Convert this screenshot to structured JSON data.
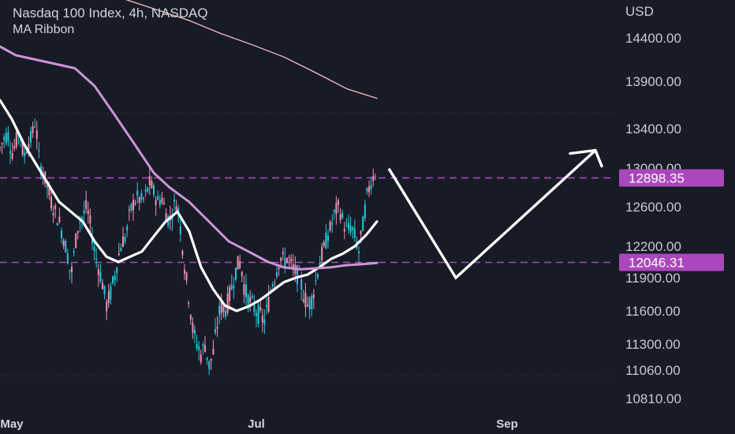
{
  "header": {
    "title": "Nasdaq 100 Index, 4h, NASDAQ",
    "indicator": "MA Ribbon"
  },
  "colors": {
    "background": "#171b26",
    "up": "#f48fb1",
    "down": "#26c6da",
    "ma_fast": "#ffffff",
    "ma_mid": "#ce93d8",
    "ma_slow": "#f8bbd0",
    "level": "#ab47bc",
    "projection": "#ffffff"
  },
  "chart_data": {
    "type": "candlestick",
    "currency": "USD",
    "x_ticks": [
      {
        "label": "May",
        "t": 15
      },
      {
        "label": "Jul",
        "t": 325
      },
      {
        "label": "Sep",
        "t": 643
      }
    ],
    "xlim": [
      0,
      780
    ],
    "y_ticks": [
      14400,
      13900,
      13400,
      13000,
      12600,
      12200,
      11900,
      11600,
      11300,
      11060,
      10810
    ],
    "y_ticks_labels": [
      "14400.00",
      "13900.00",
      "13400.00",
      "13000.00",
      "12600.00",
      "12200.00",
      "11900.00",
      "11600.00",
      "11300.00",
      "11060.00",
      "10810.00"
    ],
    "levels": [
      {
        "value": 12898.35,
        "label": "12898.35"
      },
      {
        "value": 12046.31,
        "label": "12046.31"
      }
    ],
    "dotted_lines": [
      13565,
      11010
    ],
    "price_series": [
      [
        0,
        13200
      ],
      [
        5,
        13300
      ],
      [
        10,
        13350
      ],
      [
        15,
        13150
      ],
      [
        20,
        13250
      ],
      [
        25,
        13400
      ],
      [
        30,
        13100
      ],
      [
        35,
        13250
      ],
      [
        40,
        13300
      ],
      [
        45,
        13500
      ],
      [
        50,
        13050
      ],
      [
        55,
        12950
      ],
      [
        60,
        12800
      ],
      [
        65,
        12650
      ],
      [
        70,
        12550
      ],
      [
        75,
        12450
      ],
      [
        80,
        12300
      ],
      [
        85,
        12150
      ],
      [
        90,
        11900
      ],
      [
        95,
        12200
      ],
      [
        100,
        12450
      ],
      [
        105,
        12500
      ],
      [
        110,
        12600
      ],
      [
        115,
        12400
      ],
      [
        120,
        12150
      ],
      [
        125,
        12000
      ],
      [
        130,
        11850
      ],
      [
        135,
        11650
      ],
      [
        140,
        11750
      ],
      [
        145,
        11900
      ],
      [
        150,
        12100
      ],
      [
        155,
        12250
      ],
      [
        160,
        12300
      ],
      [
        165,
        12550
      ],
      [
        170,
        12650
      ],
      [
        175,
        12700
      ],
      [
        180,
        12650
      ],
      [
        185,
        12720
      ],
      [
        190,
        12850
      ],
      [
        195,
        12750
      ],
      [
        200,
        12650
      ],
      [
        205,
        12700
      ],
      [
        210,
        12550
      ],
      [
        215,
        12450
      ],
      [
        220,
        12600
      ],
      [
        225,
        12650
      ],
      [
        230,
        12300
      ],
      [
        235,
        11950
      ],
      [
        240,
        11700
      ],
      [
        245,
        11400
      ],
      [
        250,
        11300
      ],
      [
        255,
        11200
      ],
      [
        260,
        11300
      ],
      [
        265,
        11100
      ],
      [
        270,
        11200
      ],
      [
        275,
        11450
      ],
      [
        280,
        11650
      ],
      [
        285,
        11600
      ],
      [
        290,
        11700
      ],
      [
        295,
        11850
      ],
      [
        300,
        12000
      ],
      [
        305,
        12050
      ],
      [
        310,
        11800
      ],
      [
        315,
        11700
      ],
      [
        320,
        11650
      ],
      [
        325,
        11600
      ],
      [
        330,
        11550
      ],
      [
        335,
        11500
      ],
      [
        340,
        11650
      ],
      [
        345,
        11850
      ],
      [
        350,
        11950
      ],
      [
        355,
        12100
      ],
      [
        360,
        12050
      ],
      [
        365,
        12100
      ],
      [
        370,
        12000
      ],
      [
        375,
        11950
      ],
      [
        380,
        11900
      ],
      [
        385,
        11750
      ],
      [
        390,
        11650
      ],
      [
        395,
        11700
      ],
      [
        400,
        11850
      ],
      [
        405,
        12050
      ],
      [
        410,
        12150
      ],
      [
        415,
        12300
      ],
      [
        420,
        12400
      ],
      [
        425,
        12550
      ],
      [
        430,
        12600
      ],
      [
        435,
        12450
      ],
      [
        440,
        12350
      ],
      [
        445,
        12400
      ],
      [
        450,
        12300
      ],
      [
        455,
        12150
      ],
      [
        460,
        12400
      ],
      [
        465,
        12700
      ],
      [
        470,
        12850
      ],
      [
        475,
        12950
      ]
    ],
    "series": [
      {
        "name": "",
        "role": "ma_fast",
        "points": [
          [
            0,
            13700
          ],
          [
            15,
            13500
          ],
          [
            30,
            13250
          ],
          [
            45,
            13050
          ],
          [
            60,
            12850
          ],
          [
            75,
            12650
          ],
          [
            90,
            12550
          ],
          [
            105,
            12450
          ],
          [
            120,
            12250
          ],
          [
            135,
            12100
          ],
          [
            150,
            12050
          ],
          [
            165,
            12100
          ],
          [
            180,
            12150
          ],
          [
            195,
            12300
          ],
          [
            210,
            12450
          ],
          [
            225,
            12550
          ],
          [
            240,
            12350
          ],
          [
            255,
            12000
          ],
          [
            270,
            11800
          ],
          [
            285,
            11650
          ],
          [
            300,
            11600
          ],
          [
            315,
            11640
          ],
          [
            330,
            11700
          ],
          [
            345,
            11780
          ],
          [
            360,
            11860
          ],
          [
            375,
            11900
          ],
          [
            390,
            11930
          ],
          [
            405,
            12000
          ],
          [
            420,
            12080
          ],
          [
            435,
            12130
          ],
          [
            450,
            12200
          ],
          [
            465,
            12320
          ],
          [
            478,
            12450
          ]
        ]
      },
      {
        "name": "",
        "role": "ma_mid",
        "points": [
          [
            0,
            14300
          ],
          [
            20,
            14200
          ],
          [
            45,
            14150
          ],
          [
            70,
            14100
          ],
          [
            95,
            14050
          ],
          [
            120,
            13850
          ],
          [
            145,
            13550
          ],
          [
            170,
            13250
          ],
          [
            195,
            12950
          ],
          [
            215,
            12800
          ],
          [
            240,
            12650
          ],
          [
            265,
            12450
          ],
          [
            290,
            12250
          ],
          [
            315,
            12150
          ],
          [
            340,
            12050
          ],
          [
            360,
            12000
          ],
          [
            380,
            11980
          ],
          [
            400,
            11990
          ],
          [
            420,
            12000
          ],
          [
            440,
            12020
          ],
          [
            460,
            12030
          ],
          [
            478,
            12040
          ]
        ]
      },
      {
        "name": "",
        "role": "ma_slow",
        "points": [
          [
            120,
            14950
          ],
          [
            160,
            14840
          ],
          [
            200,
            14720
          ],
          [
            240,
            14600
          ],
          [
            280,
            14450
          ],
          [
            320,
            14320
          ],
          [
            360,
            14180
          ],
          [
            400,
            14000
          ],
          [
            440,
            13820
          ],
          [
            478,
            13720
          ]
        ]
      }
    ],
    "projection": {
      "points": [
        [
          493,
          12995
        ],
        [
          578,
          11900
        ],
        [
          755,
          13180
        ]
      ],
      "arrow_tip": [
        755,
        13180
      ]
    }
  }
}
